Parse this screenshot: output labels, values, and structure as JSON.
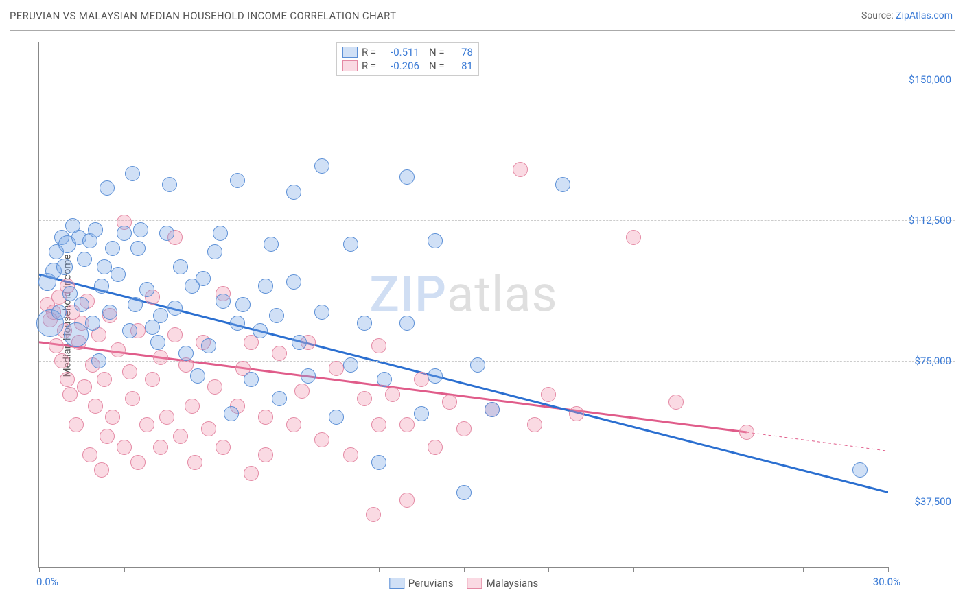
{
  "title": "PERUVIAN VS MALAYSIAN MEDIAN HOUSEHOLD INCOME CORRELATION CHART",
  "source_label": "Source: ",
  "source_name": "ZipAtlas.com",
  "ylabel": "Median Household Income",
  "watermark_z": "ZIP",
  "watermark_rest": "atlas",
  "chart": {
    "type": "scatter",
    "xlim": [
      0,
      30
    ],
    "ylim": [
      20000,
      160000
    ],
    "y_gridlines": [
      37500,
      75000,
      112500,
      150000
    ],
    "y_gridlabels": [
      "$37,500",
      "$75,000",
      "$112,500",
      "$150,000"
    ],
    "x_ticks": [
      0,
      3,
      6,
      9,
      12,
      15,
      18,
      21,
      24,
      27,
      30
    ],
    "x_start_label": "0.0%",
    "x_end_label": "30.0%",
    "background_color": "#ffffff",
    "grid_color": "#cccccc",
    "axis_color": "#888888",
    "series": [
      {
        "name": "Peruvians",
        "fill": "rgba(120,165,230,0.35)",
        "stroke": "#5b8fd6",
        "trend_color": "#2b6fd0",
        "trend_width": 3,
        "R": "-0.511",
        "N": "78",
        "trend": {
          "x1": 0,
          "y1": 98000,
          "x2": 30,
          "y2": 40000
        },
        "points": [
          [
            0.3,
            96000,
            13
          ],
          [
            0.4,
            85000,
            20
          ],
          [
            0.5,
            99000,
            12
          ],
          [
            0.6,
            104000,
            11
          ],
          [
            0.7,
            88000,
            11
          ],
          [
            0.8,
            108000,
            11
          ],
          [
            0.9,
            100000,
            12
          ],
          [
            1.0,
            106000,
            13
          ],
          [
            1.1,
            93000,
            11
          ],
          [
            1.2,
            111000,
            11
          ],
          [
            1.3,
            82000,
            18
          ],
          [
            1.4,
            108000,
            11
          ],
          [
            1.5,
            90000,
            11
          ],
          [
            1.6,
            102000,
            11
          ],
          [
            1.8,
            107000,
            11
          ],
          [
            1.9,
            85000,
            11
          ],
          [
            2.0,
            110000,
            11
          ],
          [
            2.1,
            75000,
            11
          ],
          [
            2.2,
            95000,
            11
          ],
          [
            2.3,
            100000,
            11
          ],
          [
            2.4,
            121000,
            11
          ],
          [
            2.5,
            88000,
            11
          ],
          [
            2.6,
            105000,
            11
          ],
          [
            2.8,
            98000,
            11
          ],
          [
            3.0,
            109000,
            11
          ],
          [
            3.2,
            83000,
            11
          ],
          [
            3.3,
            125000,
            11
          ],
          [
            3.4,
            90000,
            11
          ],
          [
            3.5,
            105000,
            11
          ],
          [
            3.6,
            110000,
            11
          ],
          [
            3.8,
            94000,
            11
          ],
          [
            4.0,
            84000,
            11
          ],
          [
            4.2,
            80000,
            11
          ],
          [
            4.3,
            87000,
            11
          ],
          [
            4.5,
            109000,
            11
          ],
          [
            4.6,
            122000,
            11
          ],
          [
            4.8,
            89000,
            11
          ],
          [
            5.0,
            100000,
            11
          ],
          [
            5.2,
            77000,
            11
          ],
          [
            5.4,
            95000,
            11
          ],
          [
            5.6,
            71000,
            11
          ],
          [
            5.8,
            97000,
            11
          ],
          [
            6.0,
            79000,
            11
          ],
          [
            6.2,
            104000,
            11
          ],
          [
            6.4,
            109000,
            11
          ],
          [
            6.5,
            91000,
            11
          ],
          [
            6.8,
            61000,
            11
          ],
          [
            7.0,
            123000,
            11
          ],
          [
            7.0,
            85000,
            11
          ],
          [
            7.2,
            90000,
            11
          ],
          [
            7.5,
            70000,
            11
          ],
          [
            7.8,
            83000,
            11
          ],
          [
            8.0,
            95000,
            11
          ],
          [
            8.2,
            106000,
            11
          ],
          [
            8.4,
            87000,
            11
          ],
          [
            8.5,
            65000,
            11
          ],
          [
            9.0,
            96000,
            11
          ],
          [
            9.0,
            120000,
            11
          ],
          [
            9.2,
            80000,
            11
          ],
          [
            9.5,
            71000,
            11
          ],
          [
            10.0,
            88000,
            11
          ],
          [
            10.0,
            127000,
            11
          ],
          [
            10.5,
            60000,
            11
          ],
          [
            11.0,
            106000,
            11
          ],
          [
            11.0,
            74000,
            11
          ],
          [
            11.5,
            85000,
            11
          ],
          [
            12.0,
            48000,
            11
          ],
          [
            12.2,
            70000,
            11
          ],
          [
            13.0,
            124000,
            11
          ],
          [
            13.0,
            85000,
            11
          ],
          [
            13.5,
            61000,
            11
          ],
          [
            14.0,
            107000,
            11
          ],
          [
            14.0,
            71000,
            11
          ],
          [
            15.0,
            40000,
            11
          ],
          [
            15.5,
            74000,
            11
          ],
          [
            16.0,
            62000,
            11
          ],
          [
            18.5,
            122000,
            11
          ],
          [
            29.0,
            46000,
            11
          ]
        ]
      },
      {
        "name": "Malaysians",
        "fill": "rgba(240,150,175,0.35)",
        "stroke": "#e489a4",
        "trend_color": "#e05c8a",
        "trend_width": 3,
        "R": "-0.206",
        "N": "81",
        "trend_solid": {
          "x1": 0,
          "y1": 80000,
          "x2": 25,
          "y2": 56000
        },
        "trend_dash": {
          "x1": 25,
          "y1": 56000,
          "x2": 30,
          "y2": 51000
        },
        "points": [
          [
            0.3,
            90000,
            11
          ],
          [
            0.4,
            86000,
            11
          ],
          [
            0.5,
            88000,
            11
          ],
          [
            0.6,
            79000,
            11
          ],
          [
            0.7,
            92000,
            11
          ],
          [
            0.8,
            75000,
            11
          ],
          [
            0.9,
            83000,
            11
          ],
          [
            1.0,
            70000,
            11
          ],
          [
            1.0,
            95000,
            11
          ],
          [
            1.1,
            66000,
            11
          ],
          [
            1.2,
            88000,
            11
          ],
          [
            1.3,
            58000,
            11
          ],
          [
            1.4,
            80000,
            11
          ],
          [
            1.5,
            85000,
            11
          ],
          [
            1.6,
            68000,
            11
          ],
          [
            1.7,
            91000,
            11
          ],
          [
            1.8,
            50000,
            11
          ],
          [
            1.9,
            74000,
            11
          ],
          [
            2.0,
            63000,
            11
          ],
          [
            2.1,
            82000,
            11
          ],
          [
            2.2,
            46000,
            11
          ],
          [
            2.3,
            70000,
            11
          ],
          [
            2.4,
            55000,
            11
          ],
          [
            2.5,
            87000,
            11
          ],
          [
            2.6,
            60000,
            11
          ],
          [
            2.8,
            78000,
            11
          ],
          [
            3.0,
            112000,
            11
          ],
          [
            3.0,
            52000,
            11
          ],
          [
            3.2,
            72000,
            11
          ],
          [
            3.3,
            65000,
            11
          ],
          [
            3.5,
            48000,
            11
          ],
          [
            3.5,
            83000,
            11
          ],
          [
            3.8,
            58000,
            11
          ],
          [
            4.0,
            92000,
            11
          ],
          [
            4.0,
            70000,
            11
          ],
          [
            4.3,
            76000,
            11
          ],
          [
            4.3,
            52000,
            11
          ],
          [
            4.5,
            60000,
            11
          ],
          [
            4.8,
            82000,
            11
          ],
          [
            4.8,
            108000,
            11
          ],
          [
            5.0,
            55000,
            11
          ],
          [
            5.2,
            74000,
            11
          ],
          [
            5.4,
            63000,
            11
          ],
          [
            5.5,
            48000,
            11
          ],
          [
            5.8,
            80000,
            11
          ],
          [
            6.0,
            57000,
            11
          ],
          [
            6.2,
            68000,
            11
          ],
          [
            6.5,
            93000,
            11
          ],
          [
            6.5,
            52000,
            11
          ],
          [
            7.0,
            63000,
            11
          ],
          [
            7.2,
            73000,
            11
          ],
          [
            7.5,
            45000,
            11
          ],
          [
            7.5,
            80000,
            11
          ],
          [
            8.0,
            60000,
            11
          ],
          [
            8.0,
            50000,
            11
          ],
          [
            8.5,
            77000,
            11
          ],
          [
            9.0,
            58000,
            11
          ],
          [
            9.3,
            67000,
            11
          ],
          [
            9.5,
            80000,
            11
          ],
          [
            10.0,
            54000,
            11
          ],
          [
            10.5,
            73000,
            11
          ],
          [
            11.0,
            50000,
            11
          ],
          [
            11.5,
            65000,
            11
          ],
          [
            11.8,
            34000,
            11
          ],
          [
            12.0,
            58000,
            11
          ],
          [
            12.0,
            79000,
            11
          ],
          [
            12.5,
            66000,
            11
          ],
          [
            13.0,
            38000,
            11
          ],
          [
            13.0,
            58000,
            11
          ],
          [
            13.5,
            70000,
            11
          ],
          [
            14.0,
            52000,
            11
          ],
          [
            14.5,
            64000,
            11
          ],
          [
            15.0,
            57000,
            11
          ],
          [
            16.0,
            62000,
            11
          ],
          [
            17.0,
            126000,
            11
          ],
          [
            17.5,
            58000,
            11
          ],
          [
            18.0,
            66000,
            11
          ],
          [
            19.0,
            61000,
            11
          ],
          [
            21.0,
            108000,
            11
          ],
          [
            22.5,
            64000,
            11
          ],
          [
            25.0,
            56000,
            11
          ]
        ]
      }
    ]
  },
  "stats_legend": {
    "r_label": "R =",
    "n_label": "N ="
  },
  "bottom_legend": [
    "Peruvians",
    "Malaysians"
  ]
}
